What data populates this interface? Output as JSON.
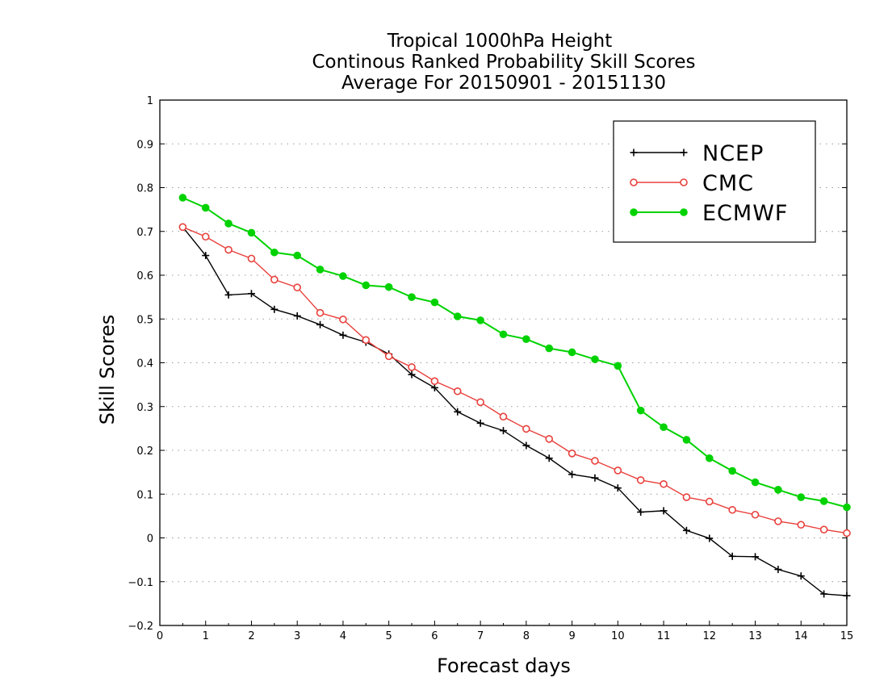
{
  "chart_data": {
    "type": "line",
    "title": [
      "Tropical 1000hPa Height",
      "Continous Ranked Probability Skill Scores",
      "Average For 20150901 - 20151130"
    ],
    "xlabel": "Forecast days",
    "ylabel": "Skill Scores",
    "xlim": [
      0,
      15
    ],
    "ylim": [
      -0.2,
      1
    ],
    "x_ticks": [
      0,
      1,
      2,
      3,
      4,
      5,
      6,
      7,
      8,
      9,
      10,
      11,
      12,
      13,
      14,
      15
    ],
    "y_ticks": [
      -0.2,
      -0.1,
      0,
      0.1,
      0.2,
      0.3,
      0.4,
      0.5,
      0.6,
      0.7,
      0.8,
      0.9,
      1
    ],
    "y_tick_labels": [
      "−0.2",
      "−0.1",
      "0",
      "0.1",
      "0.2",
      "0.3",
      "0.4",
      "0.5",
      "0.6",
      "0.7",
      "0.8",
      "0.9",
      "1"
    ],
    "grid": "horizontal-dotted",
    "legend_position": "top-right",
    "x": [
      0.5,
      1,
      1.5,
      2,
      2.5,
      3,
      3.5,
      4,
      4.5,
      5,
      5.5,
      6,
      6.5,
      7,
      7.5,
      8,
      8.5,
      9,
      9.5,
      10,
      10.5,
      11,
      11.5,
      12,
      12.5,
      13,
      13.5,
      14,
      14.5,
      15
    ],
    "series": [
      {
        "name": "NCEP",
        "color": "#000000",
        "marker": "plus",
        "values": [
          0.71,
          0.645,
          0.555,
          0.558,
          0.522,
          0.507,
          0.487,
          0.463,
          0.447,
          0.42,
          0.373,
          0.343,
          0.288,
          0.262,
          0.245,
          0.211,
          0.182,
          0.145,
          0.137,
          0.114,
          0.059,
          0.062,
          0.017,
          -0.001,
          -0.042,
          -0.043,
          -0.072,
          -0.087,
          -0.128,
          -0.132
        ]
      },
      {
        "name": "CMC",
        "color": "#e8403c",
        "marker": "open-circle",
        "values": [
          0.71,
          0.688,
          0.658,
          0.638,
          0.59,
          0.572,
          0.514,
          0.499,
          0.452,
          0.415,
          0.39,
          0.358,
          0.335,
          0.31,
          0.277,
          0.249,
          0.226,
          0.193,
          0.176,
          0.154,
          0.132,
          0.123,
          0.093,
          0.083,
          0.064,
          0.053,
          0.038,
          0.03,
          0.019,
          0.011
        ]
      },
      {
        "name": "ECMWF",
        "color": "#00d200",
        "marker": "filled-circle",
        "values": [
          0.777,
          0.754,
          0.718,
          0.697,
          0.652,
          0.645,
          0.613,
          0.598,
          0.577,
          0.573,
          0.55,
          0.538,
          0.506,
          0.497,
          0.465,
          0.454,
          0.433,
          0.424,
          0.408,
          0.393,
          0.291,
          0.253,
          0.224,
          0.182,
          0.153,
          0.127,
          0.11,
          0.093,
          0.084,
          0.07
        ]
      }
    ]
  }
}
